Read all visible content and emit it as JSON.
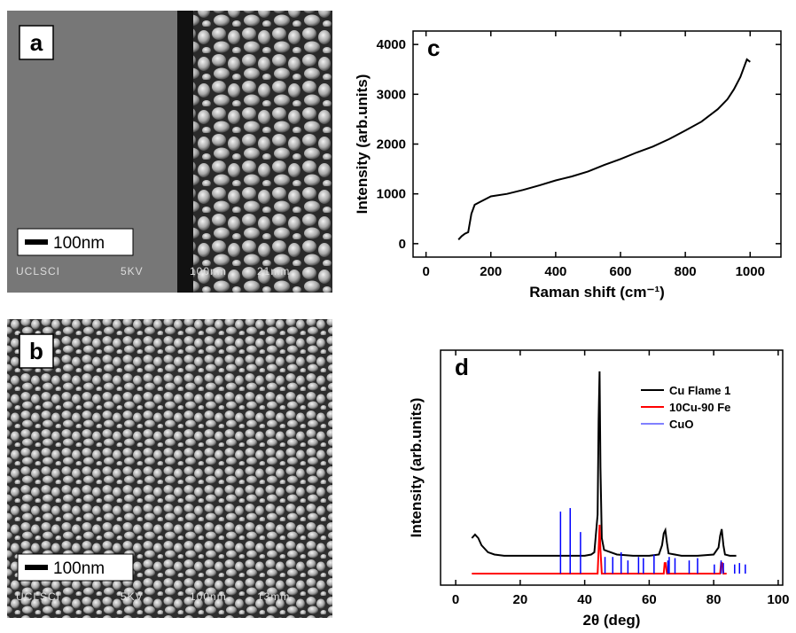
{
  "images": [
    {
      "label": "a",
      "scale_bar": "100nm",
      "overlay": [
        "UCLSCI",
        "5KV",
        "100nm",
        "21mm"
      ]
    },
    {
      "label": "b",
      "scale_bar": "100nm",
      "overlay": [
        "UCLSCI",
        "5KV",
        "100nm",
        "13mm"
      ]
    }
  ],
  "chart_data": [
    {
      "type": "line",
      "label": "c",
      "x_label": "Raman shift (cm⁻¹)",
      "y_label": "Intensity (arb.units)",
      "color": "#000000",
      "x": [
        100,
        110,
        120,
        130,
        140,
        150,
        170,
        200,
        250,
        300,
        350,
        400,
        450,
        500,
        550,
        600,
        650,
        700,
        750,
        800,
        850,
        900,
        930,
        950,
        970,
        990,
        1000
      ],
      "values": [
        80,
        150,
        200,
        230,
        600,
        780,
        850,
        950,
        1000,
        1080,
        1170,
        1270,
        1350,
        1450,
        1580,
        1700,
        1830,
        1950,
        2100,
        2270,
        2450,
        2700,
        2900,
        3100,
        3350,
        3700,
        3650
      ],
      "xlim": [
        -40,
        1095
      ],
      "xticks": [
        0,
        200,
        400,
        600,
        800,
        1000
      ],
      "ylim": [
        -270,
        4270
      ],
      "yticks": [
        0,
        1000,
        2000,
        3000,
        4000
      ]
    },
    {
      "type": "line",
      "label": "d",
      "x_label": "2θ (deg)",
      "y_label": "Intensity (arb.units)",
      "legend": "upper right",
      "xlim": [
        -4.7,
        101.4
      ],
      "xticks": [
        0,
        20,
        40,
        60,
        80,
        100
      ],
      "ylim": [
        0,
        100
      ],
      "series": [
        {
          "name": "Cu Flame 1",
          "color": "#000000",
          "x": [
            5,
            6,
            7,
            8,
            10,
            12,
            15,
            20,
            25,
            30,
            35,
            40,
            42,
            43,
            44,
            44.3,
            44.6,
            44.9,
            45.3,
            46,
            50,
            55,
            60,
            63,
            64,
            64.5,
            65,
            65.5,
            66,
            70,
            75,
            80,
            81.5,
            82,
            82.5,
            83,
            83.5,
            85,
            87
          ],
          "values": [
            20,
            21.5,
            20,
            17,
            14,
            13,
            12.5,
            12.5,
            12.5,
            12.5,
            12.5,
            12.5,
            13,
            14,
            30,
            70,
            91,
            50,
            20,
            15,
            13,
            12.5,
            12.5,
            13,
            17,
            22,
            23.4,
            18,
            13.5,
            12.5,
            12.5,
            13,
            16,
            21,
            23.8,
            17,
            13,
            12.5,
            12.5
          ]
        },
        {
          "name": "10Cu-90 Fe",
          "color": "#ff0000",
          "x": [
            5,
            44,
            44.3,
            44.6,
            44.9,
            45.3,
            64.5,
            64.8,
            65.1,
            65.5,
            82,
            82.3,
            82.6,
            83,
            84
          ],
          "values": [
            4.9,
            4.9,
            15,
            25.7,
            15,
            4.9,
            4.9,
            9.4,
            9.4,
            4.9,
            4.9,
            9.4,
            9.4,
            4.9,
            4.9
          ]
        },
        {
          "name": "CuO",
          "color": "#0000ff",
          "style": "sticks",
          "baseline": 4.9,
          "x": [
            32.5,
            35.5,
            38.7,
            46.3,
            48.7,
            51.3,
            53.4,
            56.7,
            58.2,
            61.5,
            65.8,
            66.2,
            68,
            72.4,
            75,
            80.2,
            82.3,
            83,
            86.5,
            88,
            89.8
          ],
          "values": [
            31.3,
            32.8,
            22.6,
            12,
            12,
            14,
            10.5,
            12,
            11.5,
            13,
            10.5,
            12,
            11.5,
            10.5,
            11.5,
            8.8,
            10.5,
            9.4,
            8.8,
            9.4,
            8.8
          ]
        }
      ]
    }
  ]
}
